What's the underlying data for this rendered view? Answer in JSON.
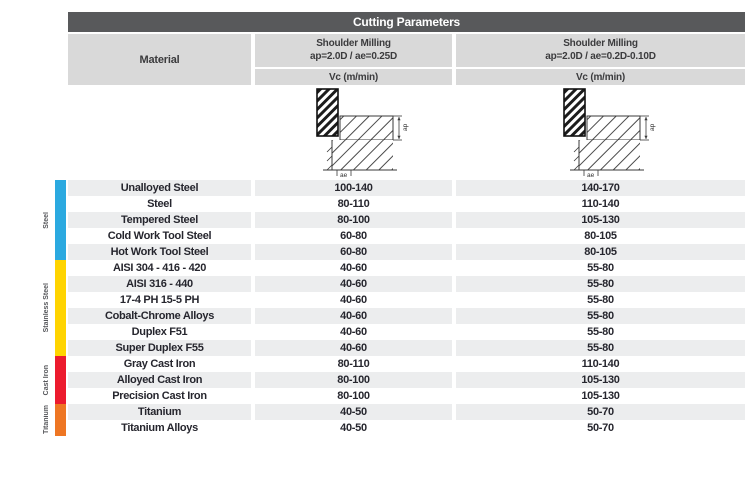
{
  "title_bar": {
    "title": "Cutting Parameters"
  },
  "header": {
    "material_label": "Material",
    "columns": [
      {
        "title": "Shoulder Milling",
        "params": "ap=2.0D / ae=0.25D",
        "unit": "Vc (m/min)"
      },
      {
        "title": "Shoulder Milling",
        "params": "ap=2.0D / ae=0.2D-0.10D",
        "unit": "Vc (m/min)"
      }
    ]
  },
  "diagram_labels": {
    "ap": "ap",
    "ae": "ae"
  },
  "colors": {
    "title_bar_bg": "#58595B",
    "header_cell_bg": "#D9D9D9",
    "row_stripe_bg": "#ECEDEE",
    "text_dark": "#26262E",
    "steel": "#2BA9E0",
    "stainless_steel": "#FFD400",
    "cast_iron": "#EC1B2E",
    "titanium": "#EE7623"
  },
  "groups": [
    {
      "label": "Steel",
      "color_key": "steel",
      "rows": [
        {
          "material": "Unalloyed Steel",
          "values": [
            "100-140",
            "140-170"
          ]
        },
        {
          "material": "Steel",
          "values": [
            "80-110",
            "110-140"
          ]
        },
        {
          "material": "Tempered Steel",
          "values": [
            "80-100",
            "105-130"
          ]
        },
        {
          "material": "Cold Work Tool Steel",
          "values": [
            "60-80",
            "80-105"
          ]
        },
        {
          "material": "Hot Work Tool Steel",
          "values": [
            "60-80",
            "80-105"
          ]
        }
      ]
    },
    {
      "label": "Stainless Steel",
      "color_key": "stainless_steel",
      "rows": [
        {
          "material": "AISI 304 - 416 - 420",
          "values": [
            "40-60",
            "55-80"
          ]
        },
        {
          "material": "AISI 316 - 440",
          "values": [
            "40-60",
            "55-80"
          ]
        },
        {
          "material": "17-4 PH 15-5 PH",
          "values": [
            "40-60",
            "55-80"
          ]
        },
        {
          "material": "Cobalt-Chrome Alloys",
          "values": [
            "40-60",
            "55-80"
          ]
        },
        {
          "material": "Duplex F51",
          "values": [
            "40-60",
            "55-80"
          ]
        },
        {
          "material": "Super Duplex F55",
          "values": [
            "40-60",
            "55-80"
          ]
        }
      ]
    },
    {
      "label": "Cast Iron",
      "color_key": "cast_iron",
      "rows": [
        {
          "material": "Gray Cast Iron",
          "values": [
            "80-110",
            "110-140"
          ]
        },
        {
          "material": "Alloyed Cast Iron",
          "values": [
            "80-100",
            "105-130"
          ]
        },
        {
          "material": "Precision Cast Iron",
          "values": [
            "80-100",
            "105-130"
          ]
        }
      ]
    },
    {
      "label": "Titanium",
      "color_key": "titanium",
      "rows": [
        {
          "material": "Titanium",
          "values": [
            "40-50",
            "50-70"
          ]
        },
        {
          "material": "Titanium Alloys",
          "values": [
            "40-50",
            "50-70"
          ]
        }
      ]
    }
  ]
}
